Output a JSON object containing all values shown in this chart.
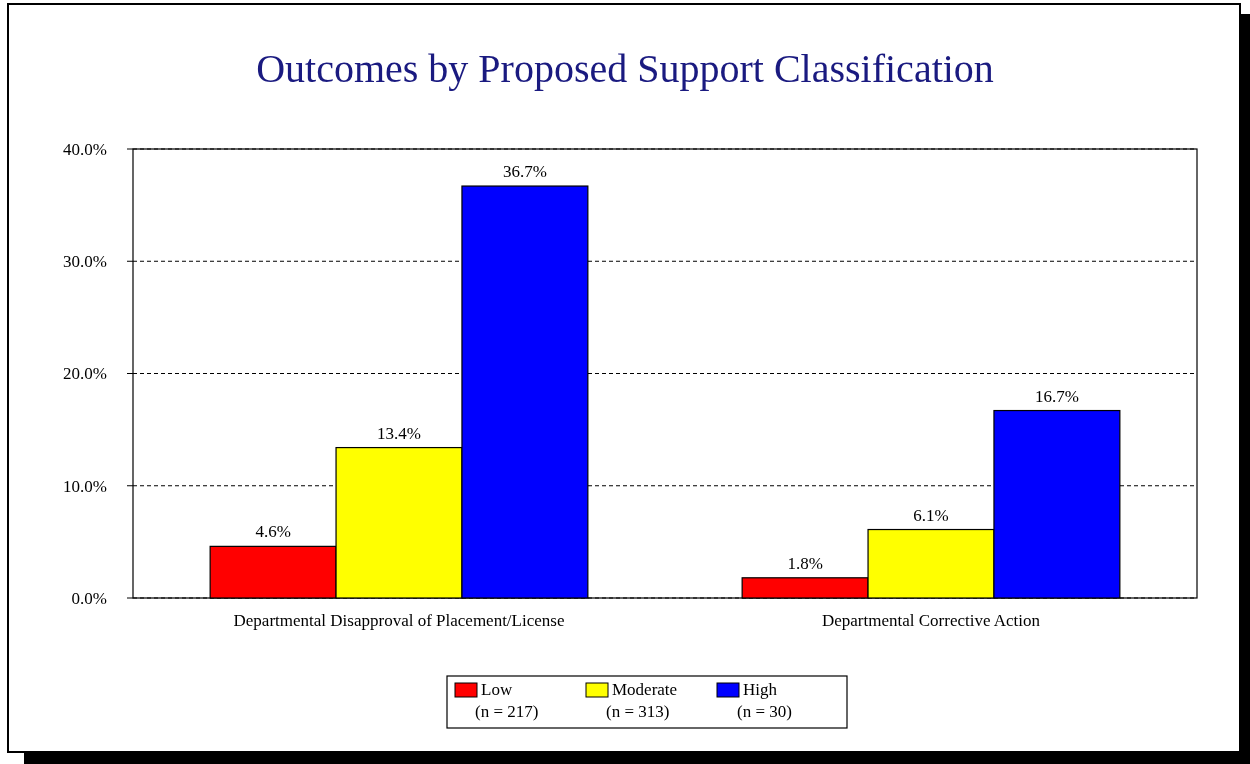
{
  "chart_data": {
    "type": "bar",
    "title": "Outcomes by Proposed Support Classification",
    "categories": [
      "Departmental Disapproval of Placement/License",
      "Departmental Corrective Action"
    ],
    "series": [
      {
        "name": "Low\n(n = 217)",
        "color": "#ff0000",
        "values": [
          4.6,
          1.8
        ]
      },
      {
        "name": "Moderate\n(n = 313)",
        "color": "#ffff00",
        "values": [
          13.4,
          6.1
        ]
      },
      {
        "name": "High\n(n = 30)",
        "color": "#0000ff",
        "values": [
          36.7,
          16.7
        ]
      }
    ],
    "value_labels": [
      [
        "4.6%",
        "1.8%"
      ],
      [
        "13.4%",
        "6.1%"
      ],
      [
        "36.7%",
        "16.7%"
      ]
    ],
    "ylim": [
      0,
      40
    ],
    "yticks": [
      {
        "value": 0,
        "label": "0.0%"
      },
      {
        "value": 10,
        "label": "10.0%"
      },
      {
        "value": 20,
        "label": "20.0%"
      },
      {
        "value": 30,
        "label": "30.0%"
      },
      {
        "value": 40,
        "label": "40.0%"
      }
    ],
    "grid": "y",
    "legend": "bottom"
  }
}
